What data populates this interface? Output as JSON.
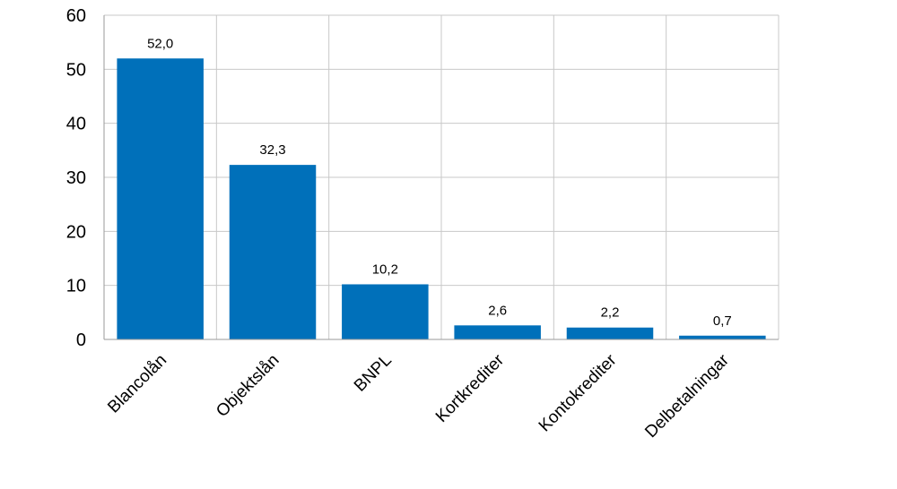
{
  "chart_data": {
    "type": "bar",
    "categories": [
      "Blancolån",
      "Objektslån",
      "BNPL",
      "Kortkrediter",
      "Kontokrediter",
      "Delbetalningar"
    ],
    "values": [
      52.0,
      32.3,
      10.2,
      2.6,
      2.2,
      0.7
    ],
    "data_labels": [
      "52,0",
      "32,3",
      "10,2",
      "2,6",
      "2,2",
      "0,7"
    ],
    "title": "",
    "xlabel": "",
    "ylabel": "",
    "ylim": [
      0,
      60
    ],
    "yticks": [
      0,
      10,
      20,
      30,
      40,
      50,
      60
    ],
    "grid": true,
    "legend": "none",
    "bar_color": "#0070BA"
  }
}
